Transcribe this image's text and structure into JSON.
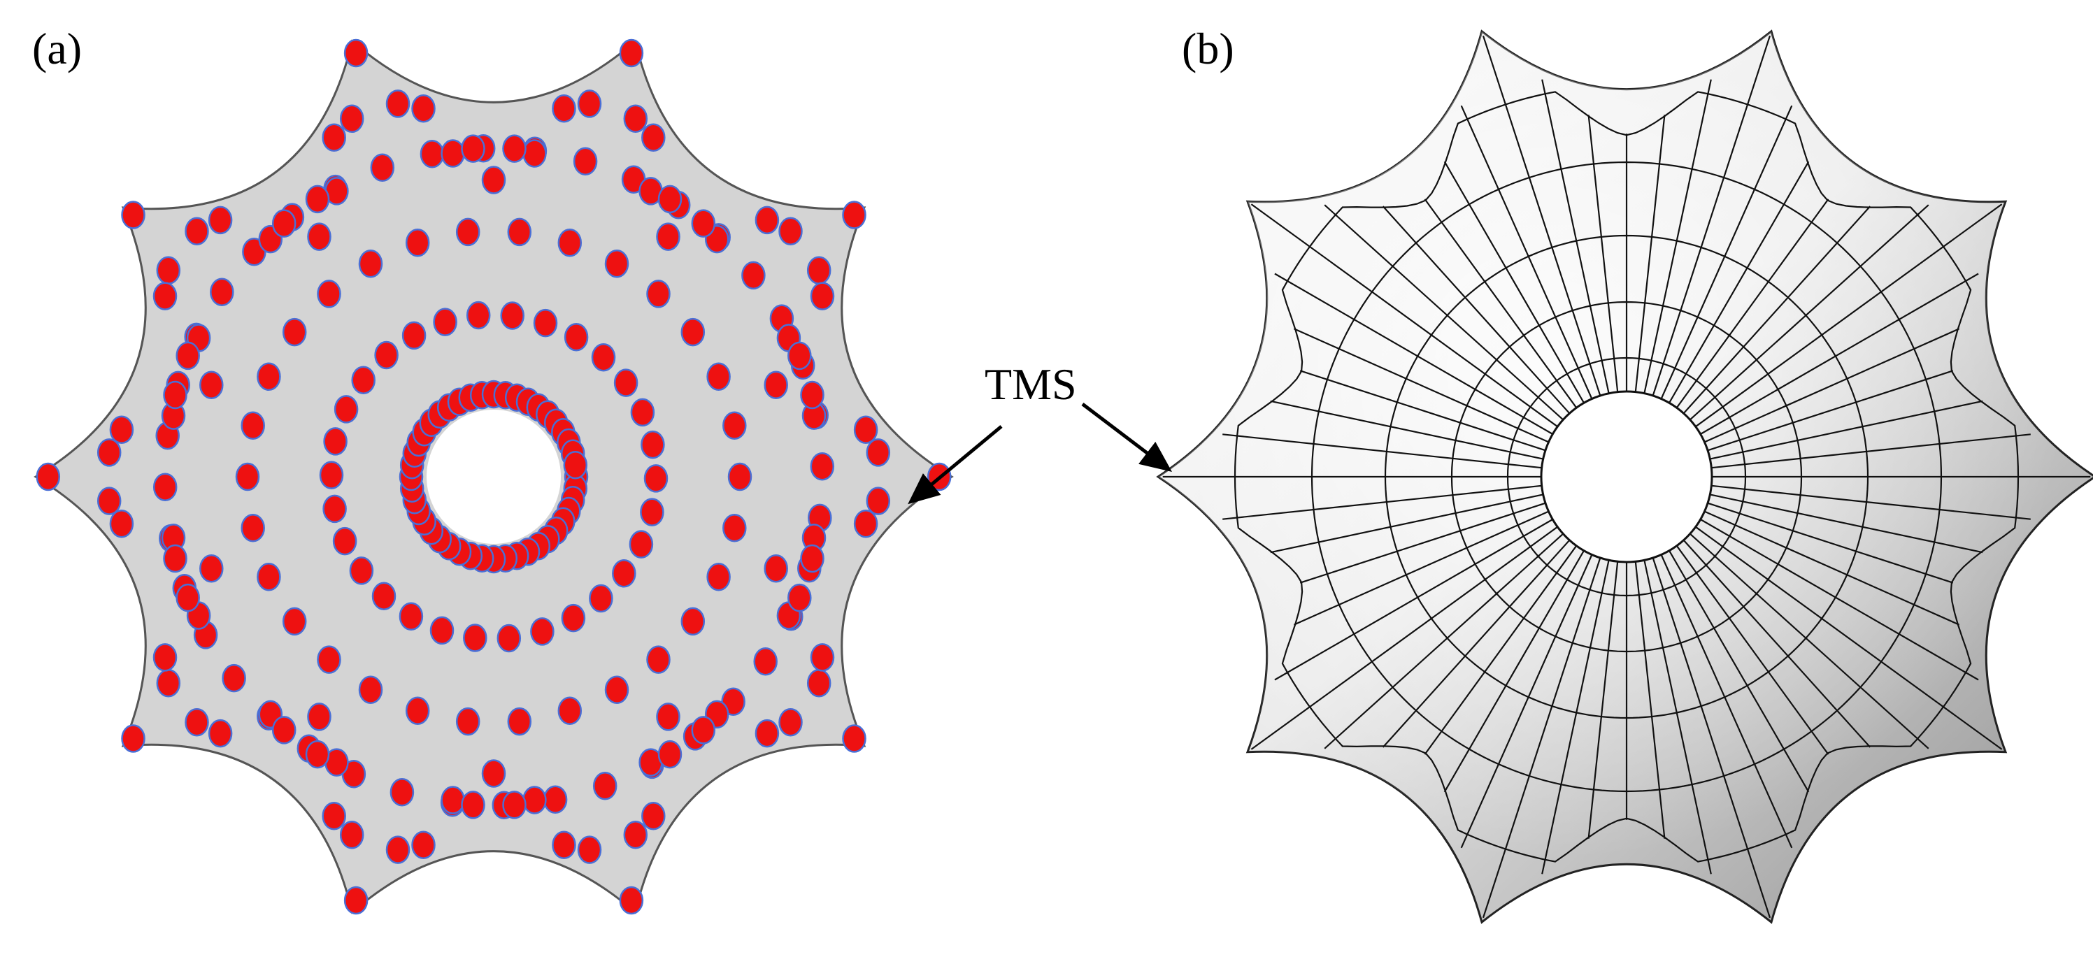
{
  "panels": {
    "a": {
      "label": "(a)",
      "node_fill": "#ee1111",
      "node_edge": "#4a6fd6",
      "membrane_fill": "#d4d4d4",
      "node_count": 214
    },
    "b": {
      "label": "(b)",
      "mesh_fill_light": "#f6f6f6",
      "mesh_fill_dark": "#9c9c9c",
      "line_color": "#111111"
    }
  },
  "annotation": {
    "text": "TMS"
  },
  "colors": {
    "background": "#ffffff",
    "outline": "#555555",
    "arrow": "#000000"
  }
}
